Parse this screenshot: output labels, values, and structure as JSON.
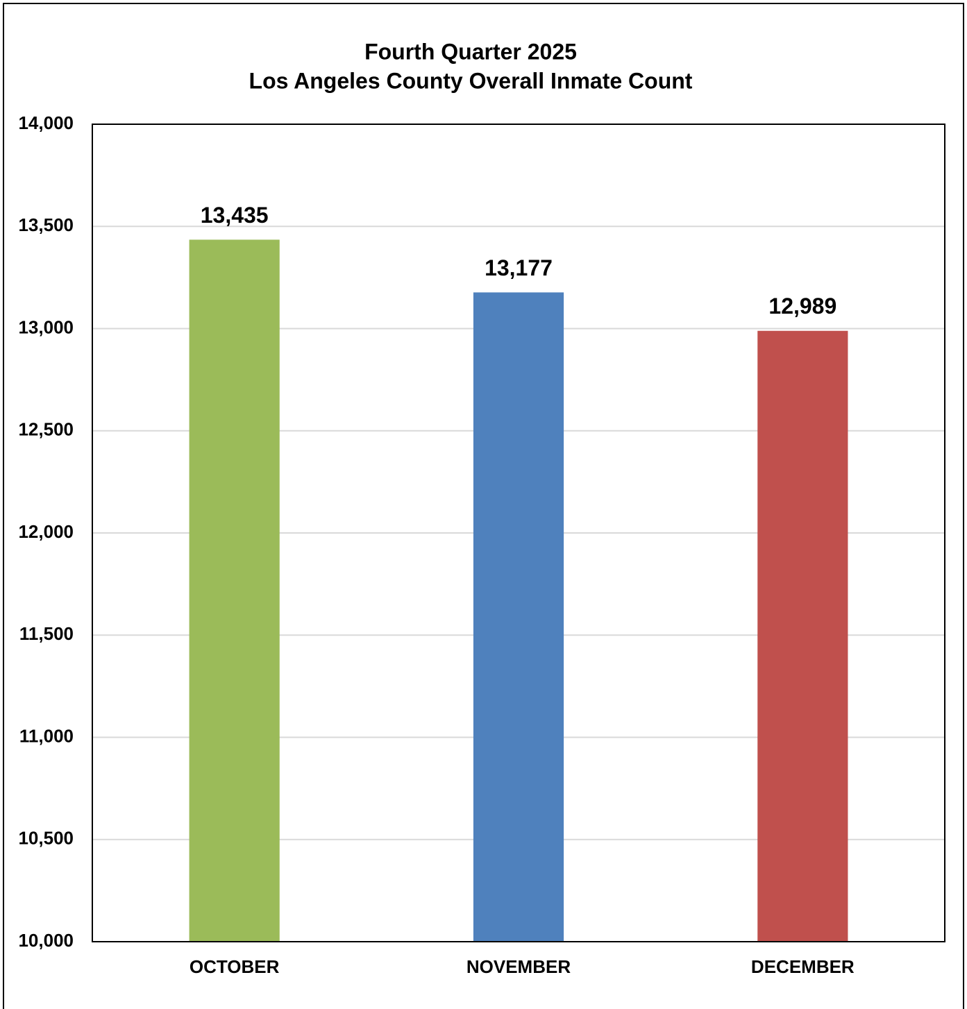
{
  "chart_data": {
    "type": "bar",
    "title": "Fourth Quarter 2025",
    "subtitle": "Los Angeles County Overall Inmate Count",
    "categories": [
      "OCTOBER",
      "NOVEMBER",
      "DECEMBER"
    ],
    "values": [
      13435,
      13177,
      12989
    ],
    "value_labels": [
      "13,435",
      "13,177",
      "12,989"
    ],
    "colors": [
      "#9bbb59",
      "#4f81bd",
      "#c0504d"
    ],
    "ylim": [
      10000,
      14000
    ],
    "yticks": [
      {
        "value": 10000,
        "label": "10,000"
      },
      {
        "value": 10500,
        "label": "10,500"
      },
      {
        "value": 11000,
        "label": "11,000"
      },
      {
        "value": 11500,
        "label": "11,500"
      },
      {
        "value": 12000,
        "label": "12,000"
      },
      {
        "value": 12500,
        "label": "12,500"
      },
      {
        "value": 13000,
        "label": "13,000"
      },
      {
        "value": 13500,
        "label": "13,500"
      },
      {
        "value": 14000,
        "label": "14,000"
      }
    ],
    "grid": true
  }
}
